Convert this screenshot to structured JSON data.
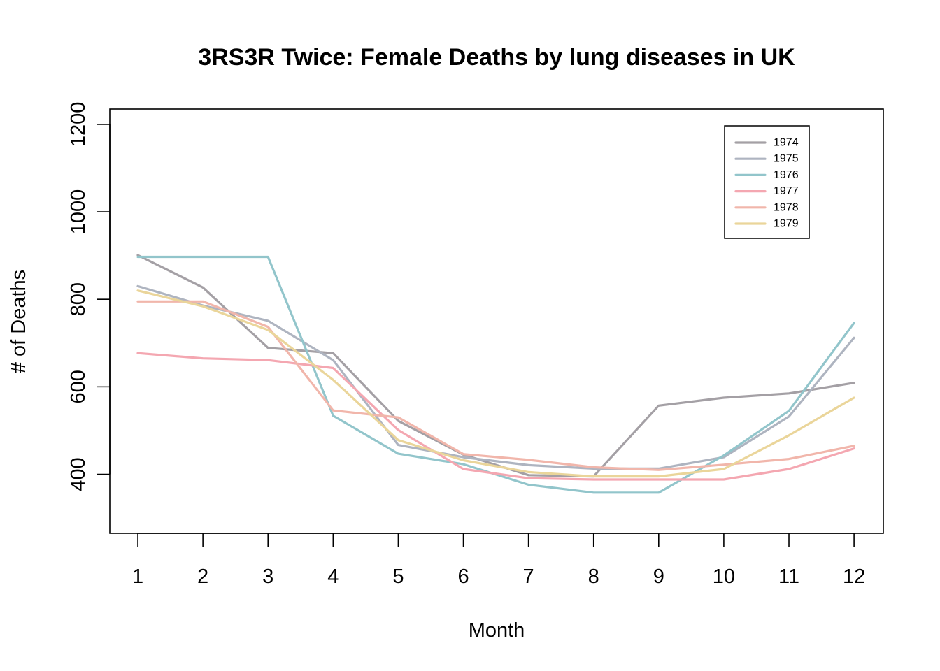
{
  "chart_data": {
    "type": "line",
    "title": "3RS3R Twice: Female Deaths by lung diseases in UK",
    "xlabel": "Month",
    "ylabel": "# of Deaths",
    "x": [
      1,
      2,
      3,
      4,
      5,
      6,
      7,
      8,
      9,
      10,
      11,
      12
    ],
    "xticks": [
      "1",
      "2",
      "3",
      "4",
      "5",
      "6",
      "7",
      "8",
      "9",
      "10",
      "11",
      "12"
    ],
    "yticks": [
      400,
      600,
      800,
      1000,
      1200
    ],
    "xlim": [
      0.57,
      12.45
    ],
    "ylim": [
      265,
      1235
    ],
    "grid": false,
    "legend_position": "top-right",
    "series": [
      {
        "name": "1974",
        "color": "#a4a0a5",
        "values": [
          901,
          827,
          689,
          677,
          522,
          445,
          398,
          395,
          557,
          575,
          585,
          609
        ]
      },
      {
        "name": "1975",
        "color": "#aeb4c0",
        "values": [
          830,
          786,
          751,
          661,
          467,
          439,
          421,
          413,
          413,
          439,
          532,
          712
        ]
      },
      {
        "name": "1976",
        "color": "#92c5cb",
        "values": [
          897,
          897,
          897,
          534,
          447,
          423,
          376,
          358,
          358,
          443,
          545,
          746
        ]
      },
      {
        "name": "1977",
        "color": "#f4a7b1",
        "values": [
          677,
          665,
          661,
          643,
          501,
          412,
          391,
          388,
          388,
          388,
          412,
          459
        ]
      },
      {
        "name": "1978",
        "color": "#f1b6ab",
        "values": [
          795,
          795,
          737,
          546,
          530,
          446,
          433,
          416,
          410,
          422,
          435,
          465
        ]
      },
      {
        "name": "1979",
        "color": "#ead59a",
        "values": [
          820,
          784,
          730,
          616,
          478,
          432,
          405,
          395,
          395,
          412,
          489,
          575
        ]
      }
    ]
  }
}
